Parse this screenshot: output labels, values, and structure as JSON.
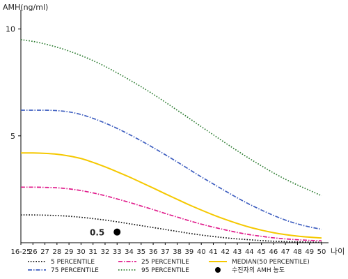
{
  "chart_data": {
    "type": "line",
    "ylabel": "AMH(ng/ml)",
    "xlabel": "나이",
    "ylim": [
      0,
      10.9
    ],
    "yticks": [
      5,
      10
    ],
    "x_categories": [
      "16-25",
      "26",
      "27",
      "28",
      "29",
      "30",
      "31",
      "32",
      "33",
      "34",
      "35",
      "36",
      "37",
      "38",
      "39",
      "40",
      "41",
      "42",
      "43",
      "44",
      "45",
      "46",
      "47",
      "48",
      "49",
      "50"
    ],
    "series": [
      {
        "name": "95 PERCENTILE",
        "color": "#2e7d32",
        "dash": "1.6 2.2",
        "values": [
          9.5,
          9.42,
          9.3,
          9.15,
          8.97,
          8.76,
          8.52,
          8.25,
          7.95,
          7.63,
          7.3,
          6.95,
          6.58,
          6.2,
          5.82,
          5.43,
          5.05,
          4.67,
          4.3,
          3.94,
          3.6,
          3.27,
          2.97,
          2.7,
          2.45,
          2.2
        ]
      },
      {
        "name": "75 PERCENTILE",
        "color": "#3f5fc0",
        "dash": "6 2 1.5 2",
        "values": [
          6.2,
          6.2,
          6.2,
          6.18,
          6.12,
          6.0,
          5.82,
          5.6,
          5.35,
          5.07,
          4.77,
          4.45,
          4.12,
          3.78,
          3.43,
          3.08,
          2.75,
          2.42,
          2.1,
          1.8,
          1.53,
          1.28,
          1.06,
          0.88,
          0.74,
          0.63
        ]
      },
      {
        "name": "MEDIAN(50 PERCENTILE)",
        "color": "#f5c800",
        "dash": "",
        "values": [
          4.2,
          4.2,
          4.18,
          4.14,
          4.06,
          3.94,
          3.76,
          3.55,
          3.32,
          3.08,
          2.82,
          2.56,
          2.29,
          2.03,
          1.77,
          1.53,
          1.3,
          1.09,
          0.9,
          0.73,
          0.59,
          0.47,
          0.38,
          0.31,
          0.26,
          0.22
        ]
      },
      {
        "name": "25 PERCENTILE",
        "color": "#e0198a",
        "dash": "6 2 1.5 2",
        "values": [
          2.6,
          2.6,
          2.59,
          2.57,
          2.52,
          2.44,
          2.33,
          2.2,
          2.05,
          1.89,
          1.72,
          1.55,
          1.37,
          1.2,
          1.03,
          0.87,
          0.73,
          0.6,
          0.48,
          0.38,
          0.3,
          0.23,
          0.18,
          0.14,
          0.11,
          0.09
        ]
      },
      {
        "name": "5 PERCENTILE",
        "color": "#111111",
        "dash": "1.6 2.2",
        "values": [
          1.3,
          1.3,
          1.29,
          1.27,
          1.24,
          1.19,
          1.13,
          1.06,
          0.98,
          0.89,
          0.8,
          0.71,
          0.62,
          0.53,
          0.44,
          0.36,
          0.29,
          0.23,
          0.18,
          0.14,
          0.1,
          0.07,
          0.05,
          0.04,
          0.03,
          0.02
        ]
      }
    ],
    "points": [
      {
        "name": "수진자의 AMH 농도",
        "x": "33",
        "y": 0.5,
        "label": "0.5",
        "color": "#000000"
      }
    ],
    "legend": {
      "placement": "bottom",
      "order": [
        "5 PERCENTILE",
        "25 PERCENTILE",
        "MEDIAN(50 PERCENTILE)",
        "75 PERCENTILE",
        "95 PERCENTILE",
        "수진자의 AMH 농도"
      ]
    }
  }
}
